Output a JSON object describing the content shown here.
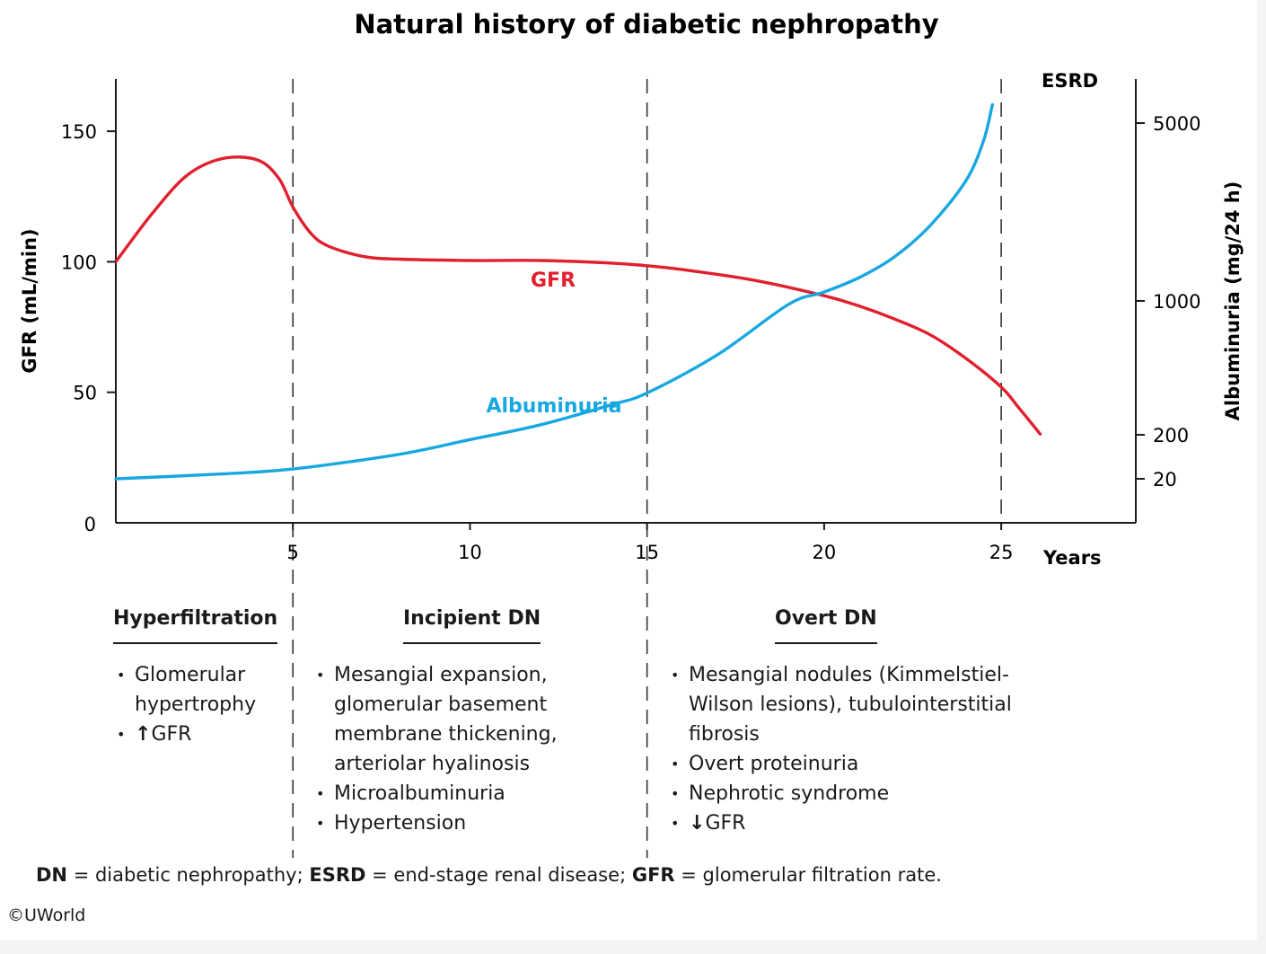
{
  "chart_data": {
    "type": "line",
    "title": "Natural history of diabetic nephropathy",
    "xlabel": "Years",
    "ylabel": "GFR (mL/min)",
    "y2label": "Albuminuria (mg/24 h)",
    "x_ticks": [
      5,
      10,
      15,
      20,
      25
    ],
    "y_ticks": [
      0,
      50,
      100,
      150
    ],
    "y2_ticks": [
      "20",
      "200",
      "1000",
      "5000"
    ],
    "xlim": [
      0,
      28.8
    ],
    "ylim": [
      0,
      170
    ],
    "grid": false,
    "phase_dividers_x": [
      5,
      15,
      25
    ],
    "annotations": {
      "esrd": "ESRD"
    },
    "series": [
      {
        "name": "GFR",
        "axis": "left",
        "color": "#e0202e",
        "x": [
          0,
          1,
          2,
          3,
          4,
          4.6,
          5,
          5.5,
          6,
          7,
          8,
          10,
          12,
          14,
          15,
          16,
          18,
          20,
          21,
          22,
          23,
          24,
          25,
          25.5,
          26.1
        ],
        "y": [
          100,
          118,
          133,
          139.5,
          139,
          132,
          121,
          111,
          106,
          102,
          101,
          100.5,
          100.5,
          99.5,
          98.5,
          97,
          93,
          87,
          83,
          78,
          72,
          63,
          52,
          44,
          34
        ]
      },
      {
        "name": "Albuminuria",
        "axis": "right",
        "color": "#18a7e0",
        "x": [
          0,
          3,
          5,
          8,
          10,
          12,
          14,
          15,
          17,
          19,
          20,
          21,
          22,
          23,
          24,
          24.5,
          24.75
        ],
        "y": [
          20,
          40,
          60,
          120,
          180,
          260,
          380,
          450,
          680,
          980,
          1200,
          1530,
          2000,
          2700,
          3700,
          4600,
          5300
        ]
      }
    ]
  },
  "phases": [
    {
      "title": "Hyperfiltration",
      "items": [
        {
          "text": "Glomerular hypertrophy"
        },
        {
          "arrow": "↑",
          "text": "GFR"
        }
      ]
    },
    {
      "title": "Incipient DN",
      "items": [
        {
          "text": "Mesangial expansion, glomerular basement membrane thickening, arteriolar hyalinosis"
        },
        {
          "text": "Microalbuminuria"
        },
        {
          "text": "Hypertension"
        }
      ]
    },
    {
      "title": "Overt DN",
      "items": [
        {
          "text": "Mesangial nodules (Kimmelstiel-Wilson lesions), tubulointerstitial fibrosis"
        },
        {
          "text": "Overt proteinuria"
        },
        {
          "text": "Nephrotic syndrome"
        },
        {
          "arrow": "↓",
          "text": "GFR"
        }
      ]
    }
  ],
  "footnote": [
    {
      "abbr": "DN",
      "def": "diabetic nephropathy"
    },
    {
      "abbr": "ESRD",
      "def": "end-stage renal disease"
    },
    {
      "abbr": "GFR",
      "def": "glomerular filtration rate"
    }
  ],
  "copyright": "©UWorld"
}
